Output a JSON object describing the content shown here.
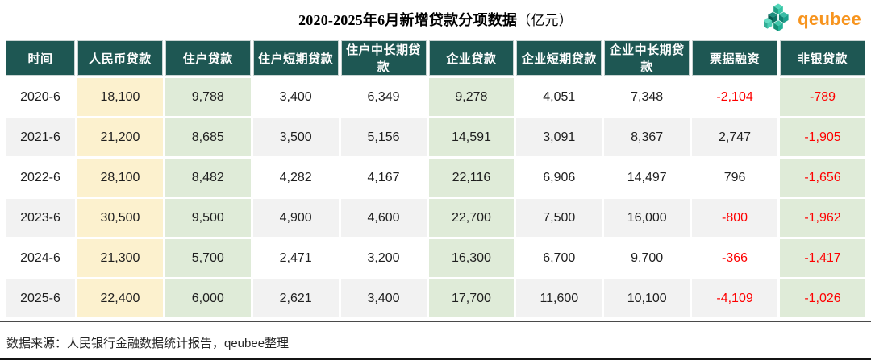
{
  "header": {
    "title": "2020-2025年6月新增贷款分项数据",
    "unit": "（亿元）",
    "logo_text": "qeubee"
  },
  "table": {
    "columns": [
      "时间",
      "人民币贷款",
      "住户贷款",
      "住户短期贷款",
      "住户中长期贷款",
      "企业贷款",
      "企业短期贷款",
      "企业中长期贷款",
      "票据融资",
      "非银贷款"
    ],
    "rows": [
      [
        "2020-6",
        "18,100",
        "9,788",
        "3,400",
        "6,349",
        "9,278",
        "4,051",
        "7,348",
        "-2,104",
        "-789"
      ],
      [
        "2021-6",
        "21,200",
        "8,685",
        "3,500",
        "5,156",
        "14,591",
        "3,091",
        "8,367",
        "2,747",
        "-1,905"
      ],
      [
        "2022-6",
        "28,100",
        "8,482",
        "4,282",
        "4,167",
        "22,116",
        "6,906",
        "14,497",
        "796",
        "-1,656"
      ],
      [
        "2023-6",
        "30,500",
        "9,500",
        "4,900",
        "4,600",
        "22,700",
        "7,500",
        "16,000",
        "-800",
        "-1,962"
      ],
      [
        "2024-6",
        "21,300",
        "5,700",
        "2,471",
        "3,200",
        "16,300",
        "6,700",
        "9,700",
        "-366",
        "-1,417"
      ],
      [
        "2025-6",
        "22,400",
        "6,000",
        "2,621",
        "3,400",
        "17,700",
        "11,600",
        "10,100",
        "-4,109",
        "-1,026"
      ]
    ]
  },
  "footer": {
    "source": "数据来源：人民银行金融数据统计报告，qeubee整理"
  },
  "colors": {
    "header_bg": "#1E5753",
    "cream_column": "#FCF1CE",
    "green_column": "#DFEBD8",
    "stripe_row": "#F2F2F2",
    "negative_value": "#FE0000",
    "logo_orange": "#F7941E",
    "logo_teal": "#2BB79E"
  },
  "chart_data": {
    "type": "table",
    "title": "2020-2025年6月新增贷款分项数据（亿元）",
    "unit": "亿元",
    "columns": [
      "时间",
      "人民币贷款",
      "住户贷款",
      "住户短期贷款",
      "住户中长期贷款",
      "企业贷款",
      "企业短期贷款",
      "企业中长期贷款",
      "票据融资",
      "非银贷款"
    ],
    "rows": [
      [
        "2020-6",
        18100,
        9788,
        3400,
        6349,
        9278,
        4051,
        7348,
        -2104,
        -789
      ],
      [
        "2021-6",
        21200,
        8685,
        3500,
        5156,
        14591,
        3091,
        8367,
        2747,
        -1905
      ],
      [
        "2022-6",
        28100,
        8482,
        4282,
        4167,
        22116,
        6906,
        14497,
        796,
        -1656
      ],
      [
        "2023-6",
        30500,
        9500,
        4900,
        4600,
        22700,
        7500,
        16000,
        -800,
        -1962
      ],
      [
        "2024-6",
        21300,
        5700,
        2471,
        3200,
        16300,
        6700,
        9700,
        -366,
        -1417
      ],
      [
        "2025-6",
        22400,
        6000,
        2621,
        3400,
        17700,
        11600,
        10100,
        -4109,
        -1026
      ]
    ],
    "notes": "negative values shown in red; source: 人民银行金融数据统计报告, qeubee整理"
  }
}
